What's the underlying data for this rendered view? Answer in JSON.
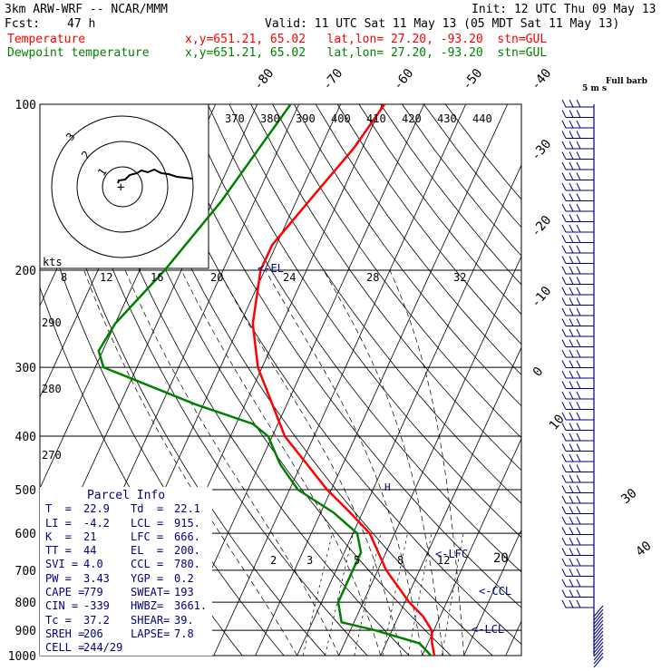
{
  "header": {
    "model": "3km ARW-WRF -- NCAR/MMM",
    "init": "Init: 12 UTC Thu 09 May 13",
    "fcst_label": "Fcst:",
    "fcst_value": "47 h",
    "valid": "Valid: 11 UTC Sat 11 May 13 (05 MDT Sat 11 May 13)",
    "lines": [
      {
        "name": "Temperature",
        "info": "x,y=651.21, 65.02   lat,lon= 27.20, -93.20  stn=GUL",
        "color": "#ff0000"
      },
      {
        "name": "Dewpoint temperature",
        "info": "x,y=651.21, 65.02   lat,lon= 27.20, -93.20  stn=GUL",
        "color": "#008000"
      }
    ]
  },
  "barb_legend": {
    "title": "Full barb",
    "units": "5 m s"
  },
  "chart_data": {
    "type": "line",
    "title": "",
    "y_axis": {
      "label": "pressure",
      "ticks": [
        100,
        200,
        300,
        400,
        500,
        600,
        700,
        800,
        900,
        1000
      ],
      "scale": "log"
    },
    "isotherm_labels": [
      -80,
      -70,
      -60,
      -50,
      -40,
      -30,
      -20,
      -10,
      0,
      10,
      20,
      30,
      40
    ],
    "theta_labels": [
      370,
      380,
      390,
      400,
      410,
      420,
      430,
      440
    ],
    "theta_left_labels": [
      290,
      280,
      270
    ],
    "mixing_ratio_labels": [
      2,
      3,
      5,
      8,
      12,
      20
    ],
    "series": [
      {
        "name": "Temperature",
        "color": "#ff0000",
        "points": [
          [
            100,
            -49.5
          ],
          [
            120,
            -52
          ],
          [
            150,
            -57
          ],
          [
            180,
            -61
          ],
          [
            200,
            -61
          ],
          [
            250,
            -57
          ],
          [
            300,
            -51
          ],
          [
            400,
            -37
          ],
          [
            500,
            -21
          ],
          [
            550,
            -13
          ],
          [
            600,
            -6
          ],
          [
            700,
            2
          ],
          [
            800,
            11
          ],
          [
            850,
            16
          ],
          [
            900,
            19.5
          ],
          [
            950,
            21
          ],
          [
            1000,
            22.9
          ]
        ]
      },
      {
        "name": "Dewpoint temperature",
        "color": "#008000",
        "points": [
          [
            100,
            -72
          ],
          [
            150,
            -78
          ],
          [
            200,
            -84
          ],
          [
            250,
            -90
          ],
          [
            280,
            -91
          ],
          [
            300,
            -88
          ],
          [
            350,
            -62
          ],
          [
            380,
            -46
          ],
          [
            400,
            -41
          ],
          [
            450,
            -35
          ],
          [
            500,
            -28
          ],
          [
            550,
            -17
          ],
          [
            600,
            -9
          ],
          [
            650,
            -6
          ],
          [
            700,
            -6
          ],
          [
            800,
            -6
          ],
          [
            870,
            -3
          ],
          [
            900,
            6
          ],
          [
            950,
            18
          ],
          [
            1000,
            22.1
          ]
        ]
      }
    ],
    "parcel_markers": [
      {
        "label": "EL",
        "pressure": 200
      },
      {
        "label": "LFC",
        "pressure": 666
      },
      {
        "label": "CCL",
        "pressure": 780
      },
      {
        "label": "LCL",
        "pressure": 915
      }
    ],
    "hodograph": {
      "units": "kts",
      "ring_labels": [
        "8",
        "12",
        "16",
        "20",
        "24",
        "28",
        "32"
      ],
      "other_labels": [
        "3",
        "2",
        "1"
      ]
    }
  },
  "parcel_info": {
    "title": "Parcel Info",
    "rows": [
      [
        "T  =",
        "22.9",
        "Td  =",
        "22.1"
      ],
      [
        "LI =",
        "-4.2",
        "LCL =",
        "915."
      ],
      [
        "K  =",
        "21",
        "LFC =",
        "666."
      ],
      [
        "TT =",
        "44",
        "EL  =",
        "200."
      ],
      [
        "SVI =",
        "4.0",
        "CCL =",
        "780."
      ],
      [
        "PW =",
        "3.43",
        "YGP =",
        "0.2"
      ],
      [
        "CAPE =",
        "779",
        "SWEAT=",
        "193"
      ],
      [
        "CIN =",
        "-339",
        "HWBZ=",
        "3661."
      ],
      [
        "Tc =",
        "37.2",
        "SHEAR=",
        "39."
      ],
      [
        "SREH =",
        "206",
        "LAPSE=",
        "7.8"
      ],
      [
        "CELL =",
        "244/29",
        "",
        ""
      ]
    ]
  },
  "colors": {
    "temperature": "#ff0000",
    "dewpoint": "#008000",
    "info_text": "#000080",
    "grid": "#000000",
    "dashed": "#000000"
  }
}
